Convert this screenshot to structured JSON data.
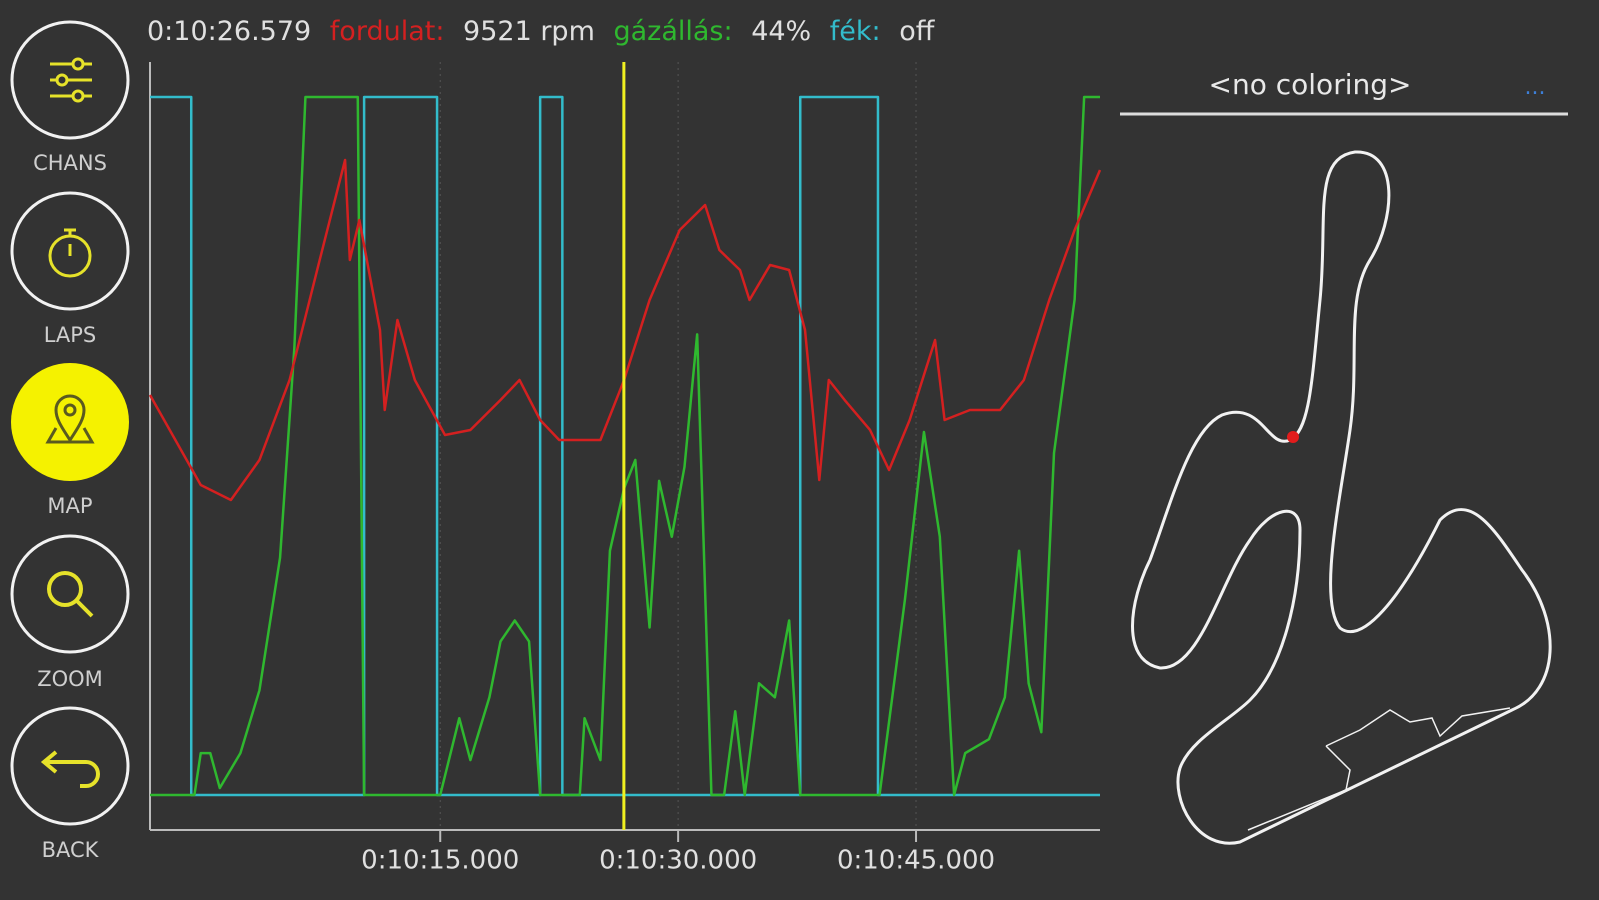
{
  "sidebar": {
    "buttons": [
      "CHANS",
      "LAPS",
      "MAP",
      "ZOOM",
      "BACK"
    ]
  },
  "map": {
    "coloring": "<no coloring>",
    "menu": "..."
  },
  "chart_data": {
    "type": "line",
    "cursor": {
      "value": 626.579,
      "label": "0:10:26.579"
    },
    "xlim": [
      596.7,
      656.6
    ],
    "xticks": [
      {
        "value": 615,
        "label": "0:10:15.000"
      },
      {
        "value": 630,
        "label": "0:10:30.000"
      },
      {
        "value": 645,
        "label": "0:10:45.000"
      }
    ],
    "grid": true,
    "series": [
      {
        "name": "fordulat:",
        "readout": "9521 rpm",
        "color": "#d42020",
        "ylim": [
          0,
          16000
        ],
        "x": [
          596.7,
          598.3,
          599.9,
          601.8,
          603.6,
          605.5,
          607.4,
          609.0,
          609.3,
          609.9,
          611.2,
          611.5,
          612.3,
          613.4,
          615.3,
          616.9,
          618.8,
          620.0,
          621.3,
          622.5,
          625.1,
          626.6,
          628.2,
          630.1,
          631.7,
          632.6,
          633.9,
          634.5,
          635.8,
          637.0,
          638.0,
          638.9,
          639.5,
          640.5,
          642.1,
          643.3,
          644.6,
          646.2,
          646.8,
          648.4,
          650.3,
          651.8,
          653.4,
          655.0,
          656.6
        ],
        "values": [
          9170,
          8138,
          7106,
          6762,
          7679,
          9513,
          12264,
          14556,
          12264,
          13181,
          10659,
          8825,
          10888,
          9513,
          8252,
          8367,
          9054,
          9513,
          8596,
          8138,
          8138,
          9521,
          11347,
          12951,
          13524,
          12493,
          12034,
          11347,
          12149,
          12034,
          10659,
          7221,
          9513,
          9054,
          8367,
          7450,
          8596,
          10430,
          8596,
          8825,
          8825,
          9513,
          11347,
          12951,
          14327
        ]
      },
      {
        "name": "gázállás:",
        "readout": "44%",
        "color": "#2fb82f",
        "ylim": [
          0,
          100
        ],
        "x": [
          596.7,
          599.5,
          599.9,
          600.5,
          601.1,
          602.4,
          603.6,
          604.9,
          605.8,
          606.5,
          609.8,
          610.2,
          615.0,
          616.2,
          616.9,
          618.1,
          618.8,
          619.7,
          620.6,
          621.3,
          623.8,
          624.1,
          625.1,
          625.7,
          626.6,
          627.3,
          628.2,
          628.8,
          629.6,
          630.4,
          631.2,
          632.1,
          632.9,
          633.6,
          634.2,
          635.1,
          636.1,
          637.0,
          637.7,
          642.7,
          644.3,
          645.5,
          646.5,
          647.4,
          648.1,
          649.6,
          650.6,
          651.5,
          652.1,
          652.9,
          653.7,
          655.0,
          655.6,
          656.6
        ],
        "values": [
          0,
          0,
          6,
          6,
          1,
          6,
          15,
          34,
          64,
          100,
          100,
          0,
          0,
          11,
          5,
          14,
          22,
          25,
          22,
          0,
          0,
          11,
          5,
          35,
          44,
          48,
          24,
          45,
          37,
          47,
          66,
          0,
          0,
          12,
          0,
          16,
          14,
          25,
          0,
          0,
          28,
          52,
          37,
          0,
          6,
          8,
          14,
          35,
          16,
          9,
          49,
          71,
          100,
          100
        ]
      },
      {
        "name": "fék:",
        "readout": "off",
        "color": "#33bccb",
        "ylim": [
          0,
          1
        ],
        "x": [
          596.7,
          599.3,
          599.3,
          610.2,
          610.2,
          614.8,
          614.8,
          621.3,
          621.3,
          622.7,
          622.7,
          637.7,
          637.7,
          642.6,
          642.6,
          656.6
        ],
        "values": [
          1,
          1,
          0,
          0,
          1,
          1,
          0,
          0,
          1,
          1,
          0,
          0,
          1,
          1,
          0,
          0
        ]
      }
    ]
  }
}
